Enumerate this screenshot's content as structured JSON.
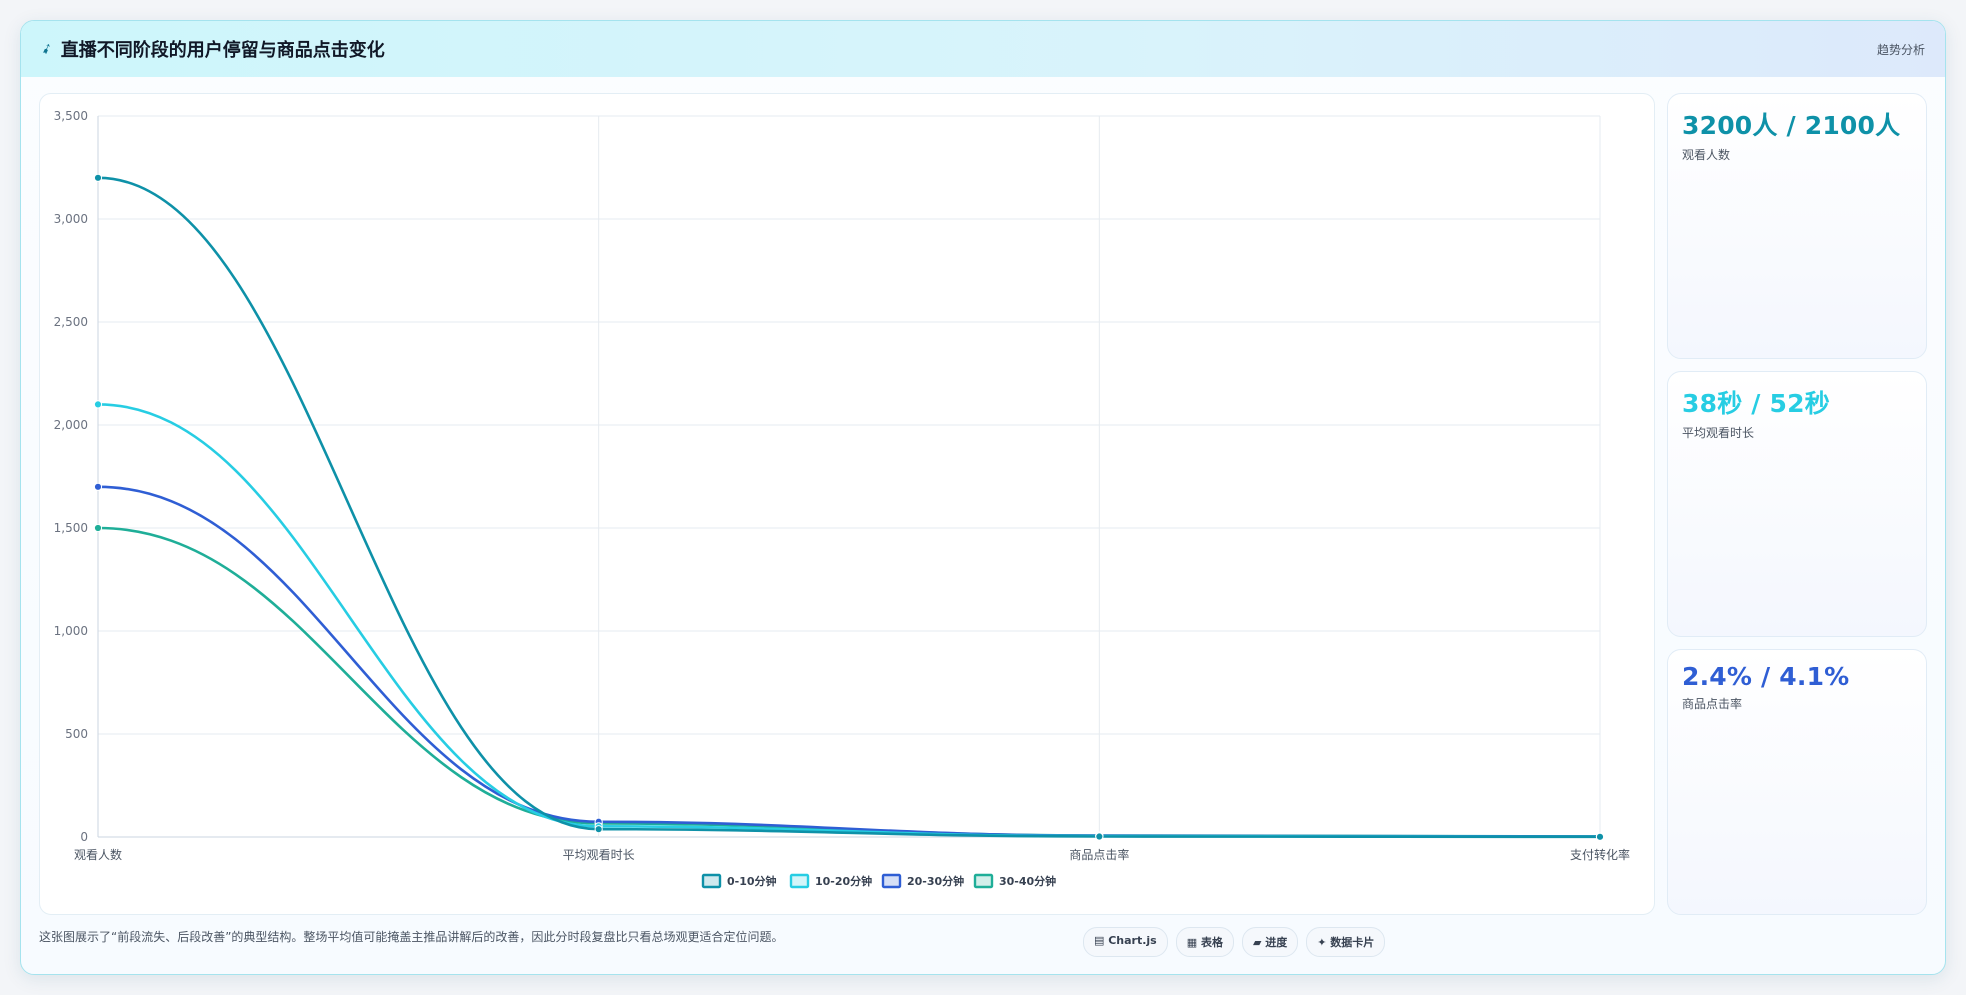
{
  "header": {
    "icon": "telescope-icon",
    "title": "直播不同阶段的用户停留与商品点击变化",
    "tag": "趋势分析"
  },
  "colors": {
    "s1": "#0e91a8",
    "s2": "#27cde3",
    "s3": "#2f5ed4",
    "s4": "#1fae98",
    "stat1": "#0e91a8",
    "stat2": "#27cde3",
    "stat3": "#2f5ed4"
  },
  "chart_data": {
    "type": "line",
    "categories": [
      "观看人数",
      "平均观看时长",
      "商品点击率",
      "支付转化率"
    ],
    "y_ticks": [
      "0",
      "500",
      "1,000",
      "1,500",
      "2,000",
      "2,500",
      "3,000",
      "3,500"
    ],
    "ylim": [
      0,
      3500
    ],
    "grid": true,
    "legend_position": "bottom",
    "series": [
      {
        "name": "0-10分钟",
        "values": [
          3200,
          38,
          2.4,
          0.8
        ]
      },
      {
        "name": "10-20分钟",
        "values": [
          2100,
          52,
          4.1,
          1.4
        ]
      },
      {
        "name": "20-30分钟",
        "values": [
          1700,
          74,
          6.2,
          2.2
        ]
      },
      {
        "name": "30-40分钟",
        "values": [
          1500,
          66,
          7.3,
          2.7
        ]
      }
    ]
  },
  "stats": [
    {
      "value": "3200人 / 2100人",
      "label": "观看人数"
    },
    {
      "value": "38秒 / 52秒",
      "label": "平均观看时长"
    },
    {
      "value": "2.4% / 4.1%",
      "label": "商品点击率"
    }
  ],
  "footer": {
    "note": "这张图展示了“前段流失、后段改善”的典型结构。整场平均值可能掩盖主推品讲解后的改善，因此分时段复盘比只看总场观更适合定位问题。",
    "chips": [
      "▤ Chart.js",
      "▦ 表格",
      "▰ 进度",
      "✦ 数据卡片"
    ]
  }
}
